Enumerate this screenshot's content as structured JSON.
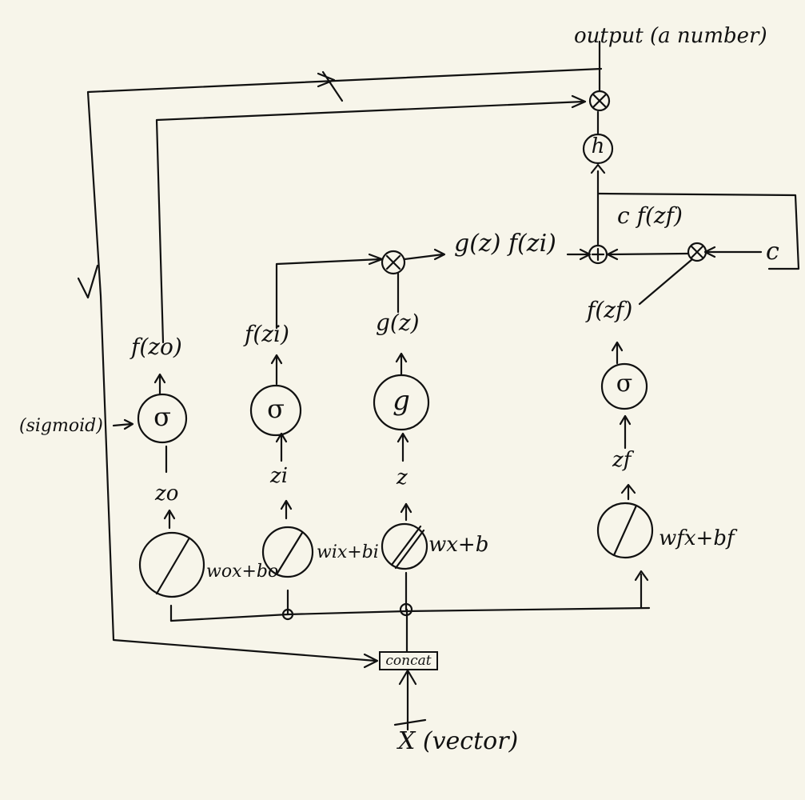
{
  "labels": {
    "output": "output (a number)",
    "input": "X (vector)",
    "concat": "concat",
    "sigmoid": "(sigmoid)",
    "f_zo": "f(zo)",
    "f_zi": "f(zi)",
    "g_z": "g(z)",
    "f_zf": "f(zf)",
    "product": "g(z) f(zi)",
    "c_fzf": "c f(zf)",
    "c": "c",
    "zo": "zo",
    "zi": "zi",
    "z": "z",
    "zf": "zf",
    "wo": "wox+bo",
    "wi": "wix+bi",
    "w": "wx+b",
    "wf": "wfx+bf"
  },
  "symbols": {
    "sigma": "σ",
    "g": "g",
    "h": "h",
    "times": "×",
    "plus": "+",
    "slash": "/"
  }
}
